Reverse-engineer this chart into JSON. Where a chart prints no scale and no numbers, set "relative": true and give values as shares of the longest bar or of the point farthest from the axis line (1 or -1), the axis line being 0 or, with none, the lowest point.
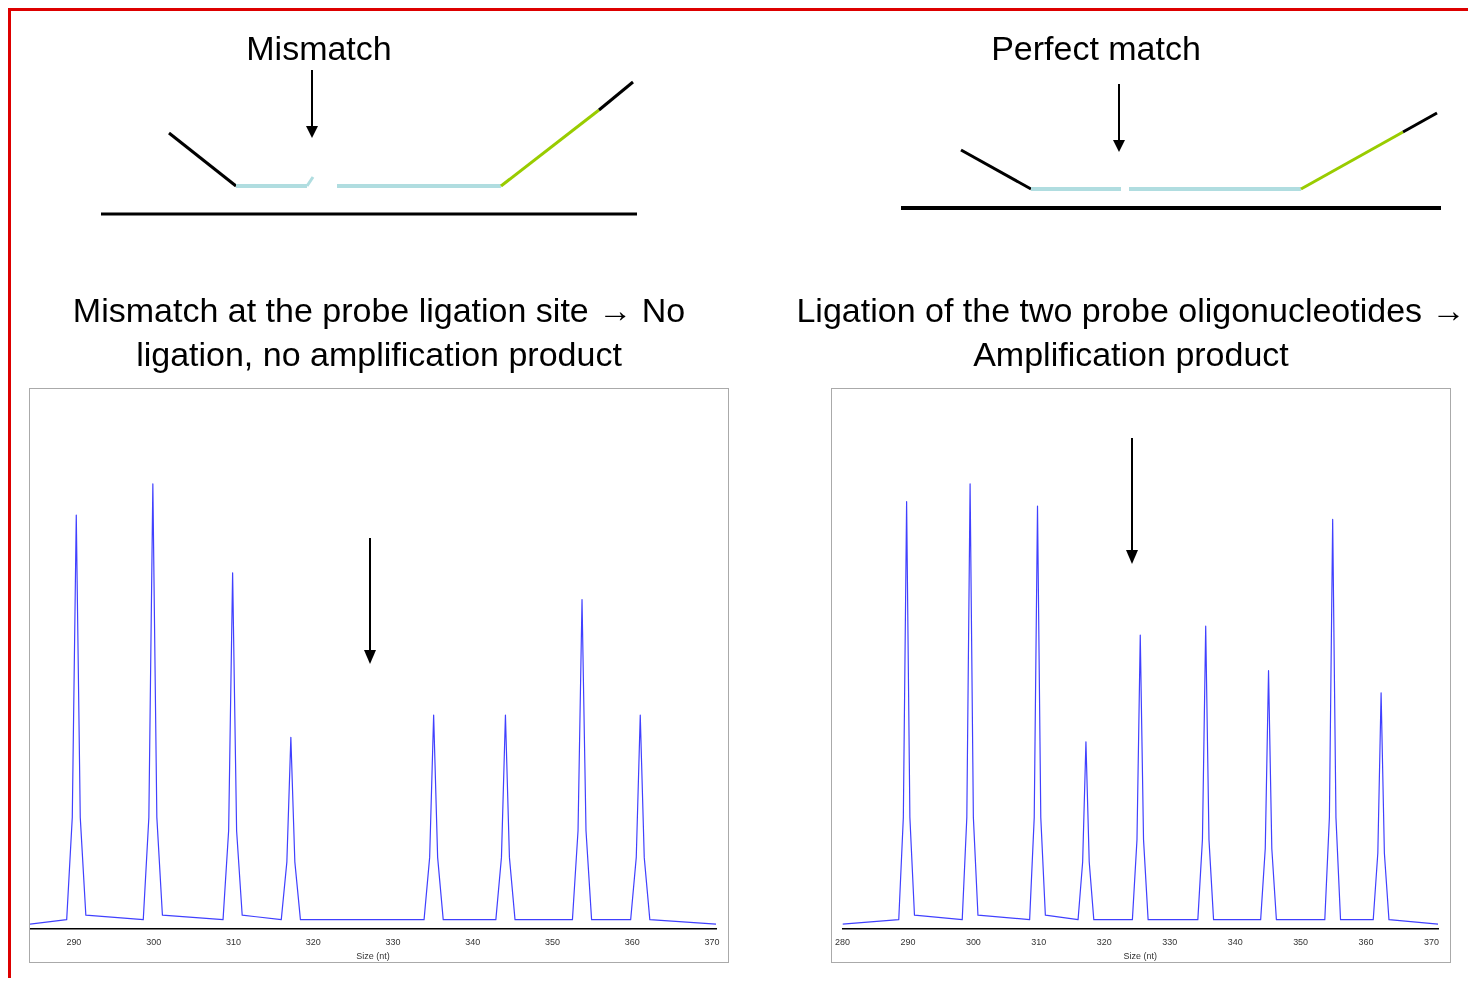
{
  "chart_data": [
    {
      "type": "line",
      "title": "Mismatch",
      "subtitle": "Mismatch at the probe ligation site → No ligation, no amplification product",
      "xlabel": "Size (nt)",
      "relative": true,
      "grid": false,
      "marker": "none",
      "xlim": [
        284.5,
        370.5
      ],
      "xticks": [
        290,
        300,
        310,
        320,
        330,
        340,
        350,
        360,
        370
      ],
      "x": [
        284.5,
        289.1,
        289.8,
        290.3,
        290.8,
        291.5,
        298.7,
        299.4,
        299.9,
        300.4,
        301.1,
        308.7,
        309.4,
        309.9,
        310.4,
        311.1,
        316.0,
        316.7,
        317.2,
        317.7,
        318.4,
        333.9,
        334.6,
        335.1,
        335.6,
        336.3,
        342.9,
        343.6,
        344.1,
        344.6,
        345.3,
        352.5,
        353.2,
        353.7,
        354.2,
        354.9,
        359.8,
        360.5,
        361.0,
        361.5,
        362.2,
        370.5
      ],
      "series": [
        {
          "color": "#4040ff",
          "values": [
            0.01,
            0.02,
            0.25,
            0.93,
            0.25,
            0.03,
            0.02,
            0.25,
            1,
            0.25,
            0.03,
            0.02,
            0.22,
            0.8,
            0.22,
            0.03,
            0.02,
            0.15,
            0.43,
            0.15,
            0.02,
            0.02,
            0.16,
            0.48,
            0.16,
            0.02,
            0.02,
            0.16,
            0.48,
            0.16,
            0.02,
            0.02,
            0.22,
            0.74,
            0.22,
            0.02,
            0.02,
            0.16,
            0.48,
            0.16,
            0.02,
            0.01
          ]
        }
      ]
    },
    {
      "type": "line",
      "title": "Perfect match",
      "subtitle": "Ligation of the two probe oligonucleotides → Amplification product",
      "xlabel": "Size (nt)",
      "relative": true,
      "grid": false,
      "marker": "none",
      "xlim": [
        280,
        371
      ],
      "xticks": [
        280,
        290,
        300,
        310,
        320,
        330,
        340,
        350,
        360,
        370
      ],
      "x": [
        280,
        288.6,
        289.3,
        289.8,
        290.3,
        291.0,
        298.3,
        299.0,
        299.5,
        300.0,
        300.7,
        308.6,
        309.3,
        309.8,
        310.3,
        311.0,
        316.0,
        316.7,
        317.2,
        317.7,
        318.4,
        324.3,
        325.0,
        325.5,
        326.0,
        326.7,
        334.3,
        335.0,
        335.5,
        336.0,
        336.7,
        343.9,
        344.6,
        345.1,
        345.6,
        346.3,
        353.7,
        354.4,
        354.9,
        355.4,
        356.1,
        361.1,
        361.8,
        362.3,
        362.8,
        363.5,
        371
      ],
      "series": [
        {
          "color": "#4040ff",
          "values": [
            0.01,
            0.02,
            0.25,
            0.96,
            0.25,
            0.03,
            0.02,
            0.25,
            1,
            0.25,
            0.03,
            0.02,
            0.25,
            0.95,
            0.25,
            0.03,
            0.02,
            0.15,
            0.42,
            0.15,
            0.02,
            0.02,
            0.2,
            0.66,
            0.2,
            0.02,
            0.02,
            0.2,
            0.68,
            0.2,
            0.02,
            0.02,
            0.18,
            0.58,
            0.18,
            0.02,
            0.02,
            0.25,
            0.92,
            0.25,
            0.02,
            0.02,
            0.17,
            0.53,
            0.17,
            0.02,
            0.01
          ]
        }
      ]
    }
  ]
}
